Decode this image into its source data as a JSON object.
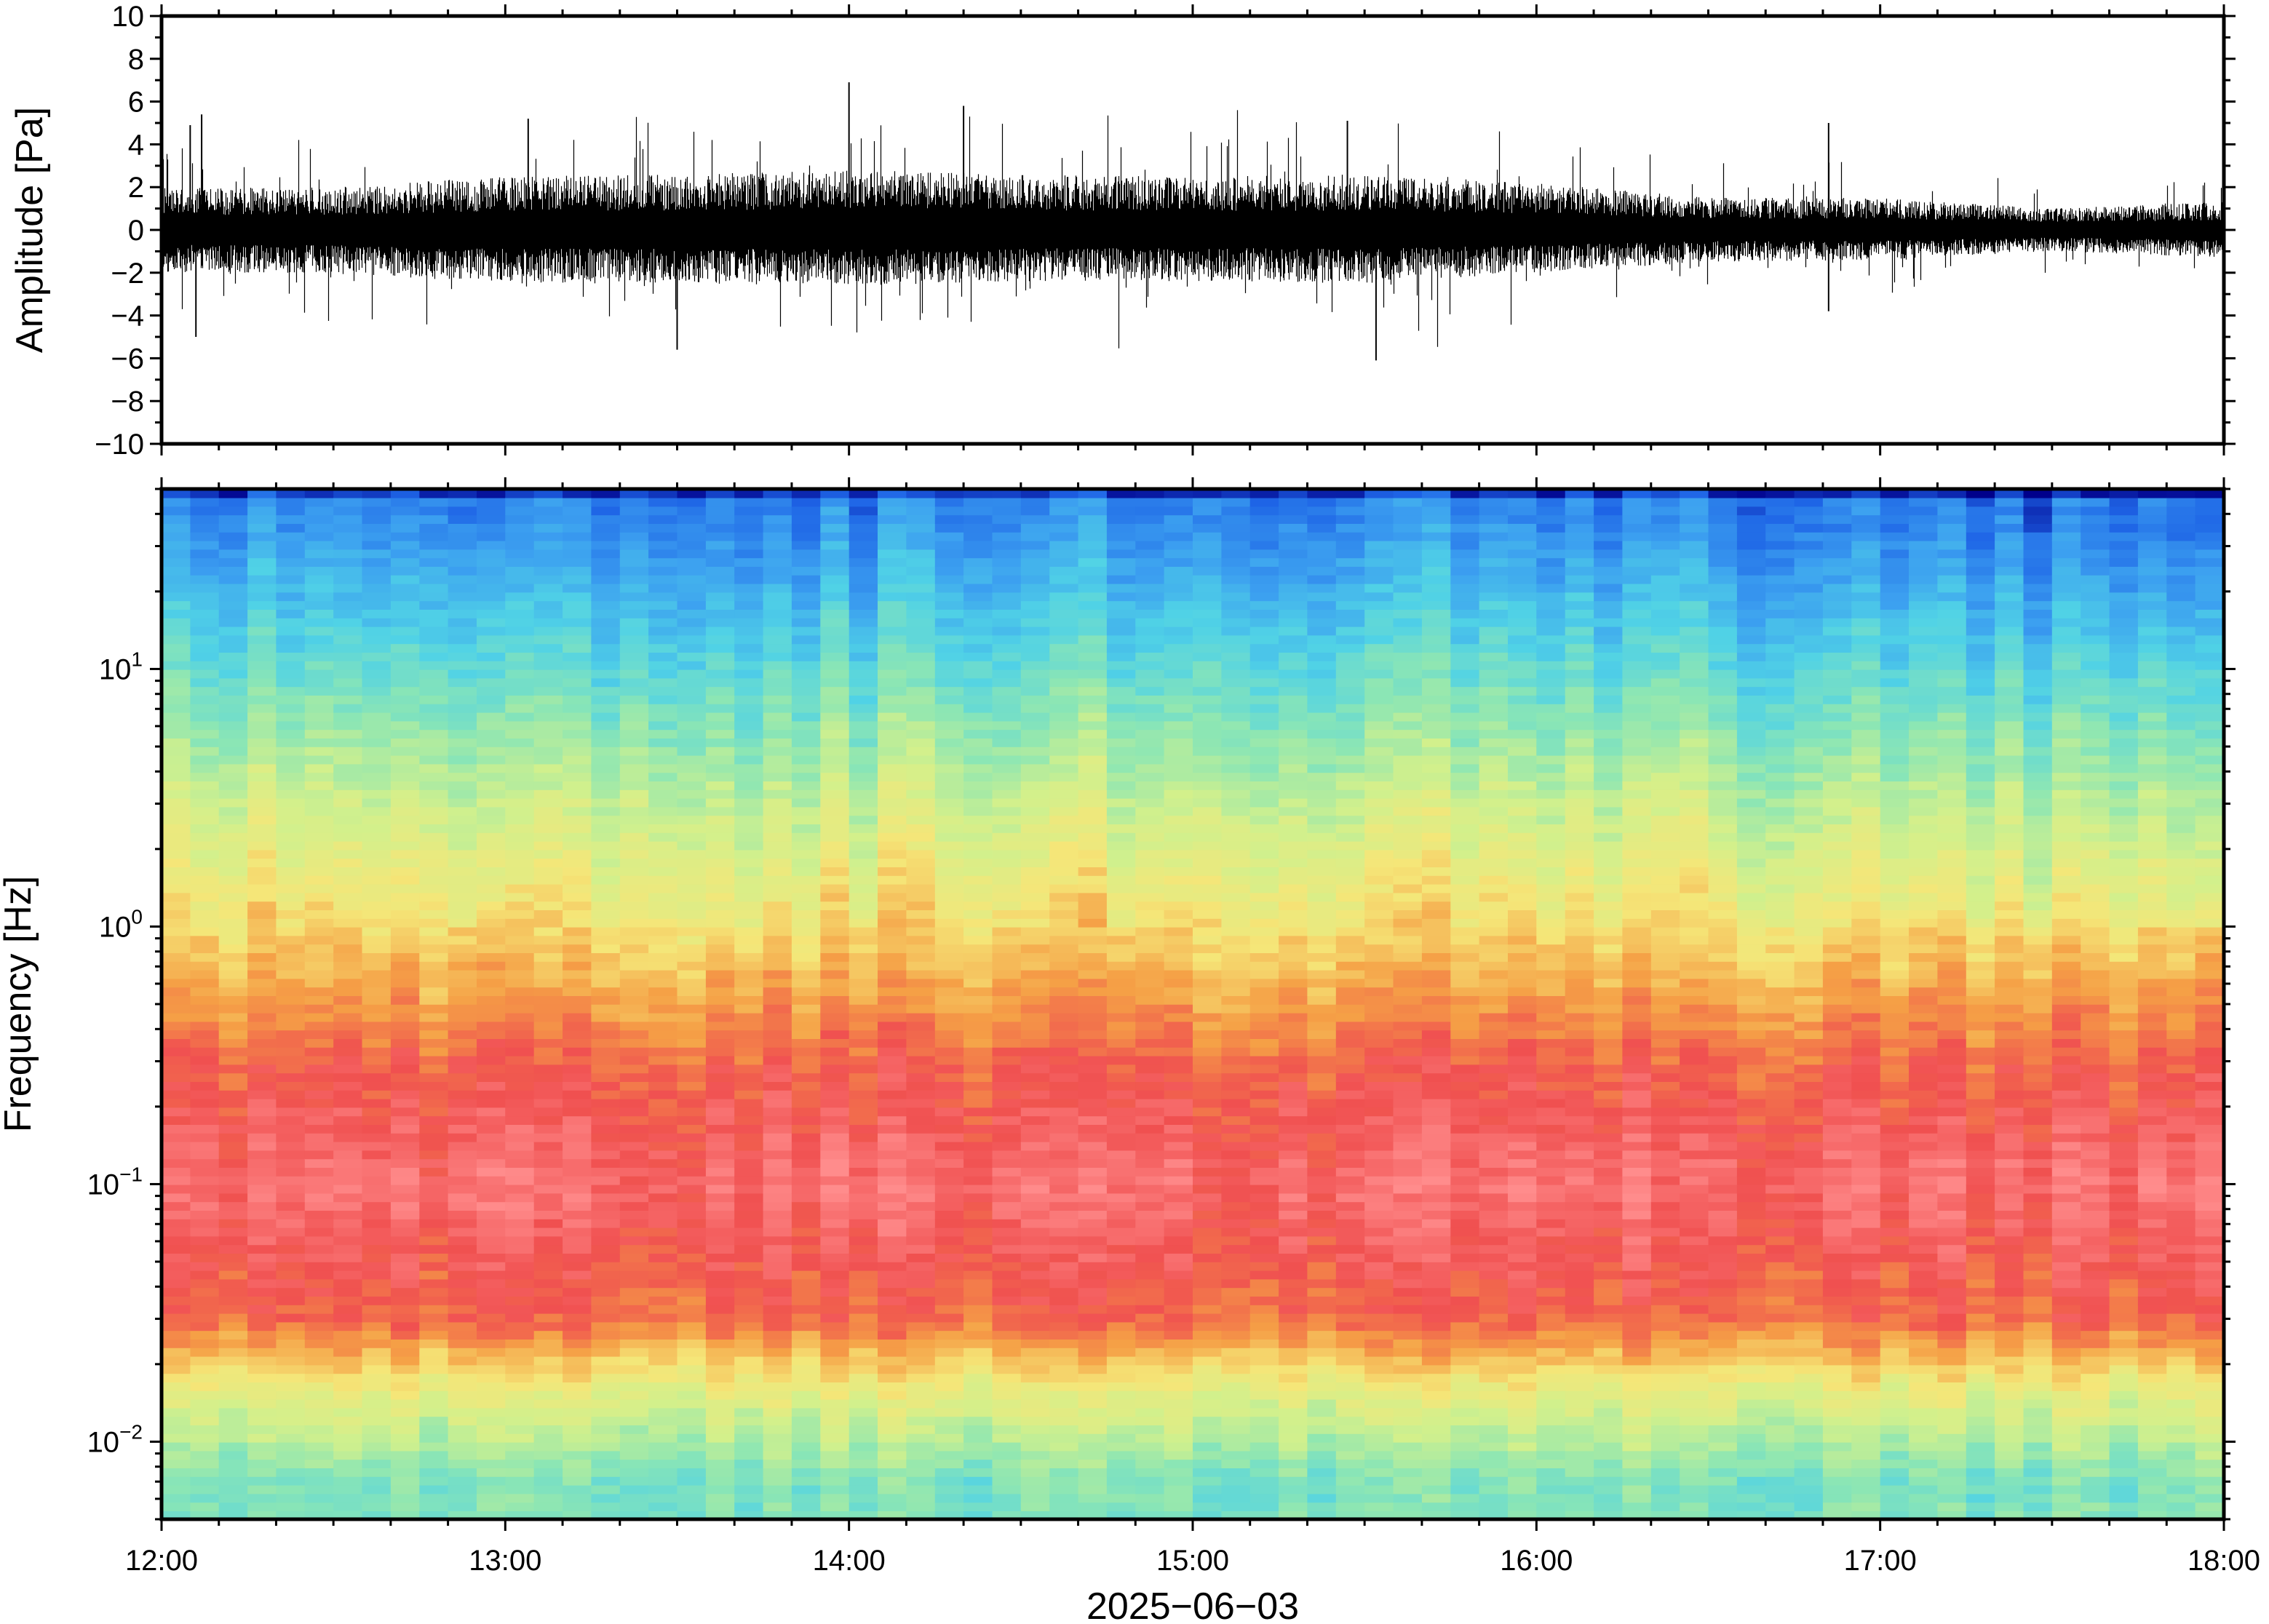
{
  "chart_data": [
    {
      "type": "line",
      "panel": "waveform",
      "ylabel": "Amplitude [Pa]",
      "ylim": [
        -10,
        10
      ],
      "yticks": [
        "10",
        "8",
        "6",
        "4",
        "2",
        "0",
        "−2",
        "−4",
        "−6",
        "−8",
        "−10"
      ],
      "ytick_values": [
        10,
        8,
        6,
        4,
        2,
        0,
        -2,
        -4,
        -6,
        -8,
        -10
      ],
      "x_start": "12:00",
      "x_end": "18:00",
      "envelope_hourly_samples": [
        {
          "time": "12:00",
          "pos": 2.0,
          "neg": -2.0
        },
        {
          "time": "12:30",
          "pos": 2.0,
          "neg": -2.0
        },
        {
          "time": "13:00",
          "pos": 2.5,
          "neg": -2.5
        },
        {
          "time": "13:30",
          "pos": 2.6,
          "neg": -2.5
        },
        {
          "time": "14:00",
          "pos": 2.8,
          "neg": -2.6
        },
        {
          "time": "14:30",
          "pos": 2.6,
          "neg": -2.4
        },
        {
          "time": "15:00",
          "pos": 2.5,
          "neg": -2.4
        },
        {
          "time": "15:30",
          "pos": 2.6,
          "neg": -2.5
        },
        {
          "time": "16:00",
          "pos": 2.2,
          "neg": -2.0
        },
        {
          "time": "16:30",
          "pos": 1.5,
          "neg": -1.5
        },
        {
          "time": "17:00",
          "pos": 1.5,
          "neg": -1.4
        },
        {
          "time": "17:30",
          "pos": 1.0,
          "neg": -1.0
        },
        {
          "time": "18:00",
          "pos": 1.3,
          "neg": -1.3
        }
      ],
      "spikes": [
        {
          "time": "12:07",
          "value": 5.4
        },
        {
          "time": "12:05",
          "value": 4.9
        },
        {
          "time": "12:06",
          "value": -5.0
        },
        {
          "time": "13:04",
          "value": 5.2
        },
        {
          "time": "13:30",
          "value": -5.6
        },
        {
          "time": "14:00",
          "value": 6.9
        },
        {
          "time": "14:20",
          "value": 5.8
        },
        {
          "time": "15:27",
          "value": 5.1
        },
        {
          "time": "15:32",
          "value": -6.1
        },
        {
          "time": "16:51",
          "value": 5.0
        },
        {
          "time": "16:51",
          "value": -3.8
        }
      ]
    },
    {
      "type": "heatmap",
      "panel": "spectrogram",
      "ylabel": "Frequency [Hz]",
      "yscale": "log",
      "ylim": [
        0.005,
        50
      ],
      "yticks": [
        {
          "value": 10,
          "base": "10",
          "exp": "1"
        },
        {
          "value": 1,
          "base": "10",
          "exp": "0"
        },
        {
          "value": 0.1,
          "base": "10",
          "exp": "−1"
        },
        {
          "value": 0.01,
          "base": "10",
          "exp": "−2"
        }
      ],
      "xlabel": "2025−06−03",
      "xticks": [
        "12:00",
        "13:00",
        "14:00",
        "15:00",
        "16:00",
        "17:00",
        "18:00"
      ],
      "x_range_hours": [
        12,
        18
      ],
      "colormap": [
        "#00008b",
        "#1e64e6",
        "#3ca0f0",
        "#50d2e6",
        "#8ce6b4",
        "#d2f08c",
        "#f5e678",
        "#f5a046",
        "#f05050",
        "#ff8c8c"
      ],
      "dominant_band_levels": [
        {
          "freq": 40,
          "level": 0.18
        },
        {
          "freq": 10,
          "level": 0.38
        },
        {
          "freq": 3,
          "level": 0.55
        },
        {
          "freq": 1,
          "level": 0.68
        },
        {
          "freq": 0.3,
          "level": 0.86
        },
        {
          "freq": 0.1,
          "level": 0.95
        },
        {
          "freq": 0.03,
          "level": 0.85
        },
        {
          "freq": 0.015,
          "level": 0.6
        },
        {
          "freq": 0.007,
          "level": 0.42
        }
      ]
    }
  ]
}
